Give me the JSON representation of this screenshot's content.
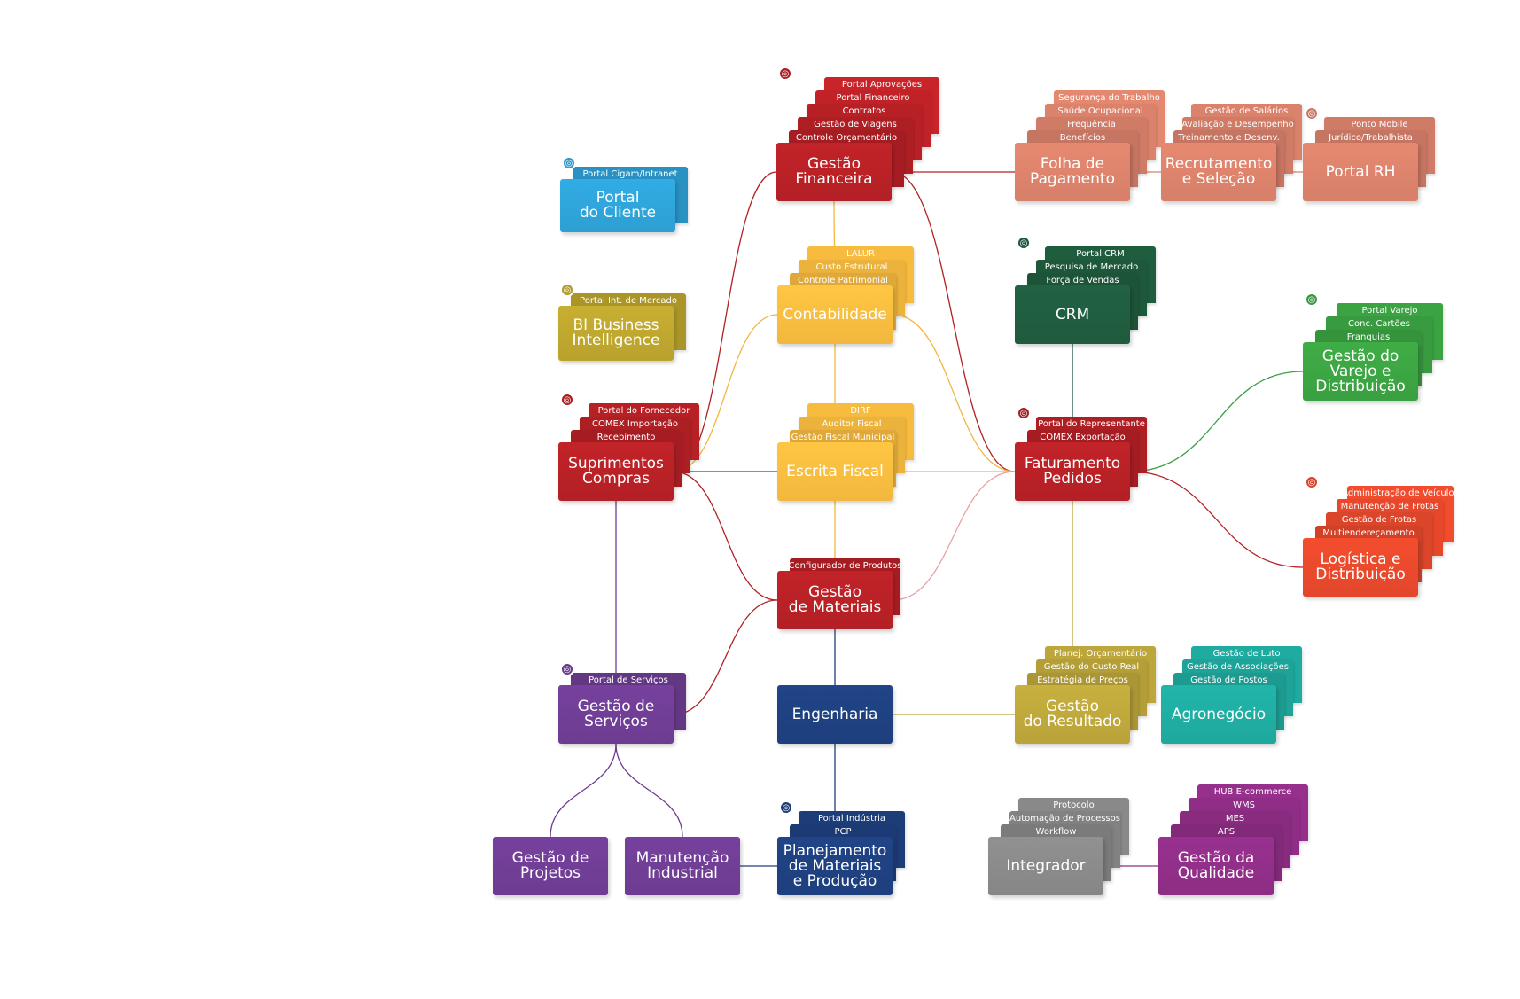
{
  "colors": {
    "darkred": "#9b1b1c",
    "red": "#b32025",
    "salmon": "#d67f69",
    "amber": "#f2b73e",
    "green_dark": "#1f5b3d",
    "green": "#3aa041",
    "orange": "#e2472b",
    "blue_light": "#2d9fd3",
    "olive": "#b9a22d",
    "olive2": "#b9a33a",
    "purple": "#6d3c91",
    "navy": "#1e3f7d",
    "teal": "#1fa89d",
    "gray": "#868686",
    "magenta": "#8d2d84"
  },
  "modules": [
    {
      "id": "portal-cliente",
      "label": "Portal\ndo Cliente",
      "color": "blue_light",
      "globe": true,
      "subs": [
        "Portal Cigam/Intranet"
      ]
    },
    {
      "id": "bi",
      "label": "BI Business\nIntelligence",
      "color": "olive",
      "globe": true,
      "subs": [
        "Portal Int. de Mercado"
      ]
    },
    {
      "id": "gestao-financeira",
      "label": "Gestão\nFinanceira",
      "color": "red",
      "globe": true,
      "subs": [
        "Controle Orçamentário",
        "Gestão de Viagens",
        "Contratos",
        "Portal Financeiro",
        "Portal Aprovações"
      ]
    },
    {
      "id": "contabilidade",
      "label": "Contabilidade",
      "color": "amber",
      "globe": false,
      "subs": [
        "Controle Patrimonial",
        "Custo Estrutural",
        "LALUR"
      ]
    },
    {
      "id": "escrita-fiscal",
      "label": "Escrita Fiscal",
      "color": "amber",
      "globe": false,
      "subs": [
        "Gestão Fiscal Municipal",
        "Auditor Fiscal",
        "DIRF"
      ]
    },
    {
      "id": "suprimentos",
      "label": "Suprimentos\nCompras",
      "color": "red",
      "globe": true,
      "subs": [
        "Recebimento",
        "COMEX Importação",
        "Portal do Fornecedor"
      ]
    },
    {
      "id": "gestao-materiais",
      "label": "Gestão\nde Materiais",
      "color": "red",
      "globe": false,
      "subs": [
        "Configurador de Produtos"
      ]
    },
    {
      "id": "gestao-servicos",
      "label": "Gestão de\nServiços",
      "color": "purple",
      "globe": true,
      "subs": [
        "Portal de Serviços"
      ]
    },
    {
      "id": "engenharia",
      "label": "Engenharia",
      "color": "navy",
      "globe": false,
      "subs": []
    },
    {
      "id": "gestao-projetos",
      "label": "Gestão de\nProjetos",
      "color": "purple",
      "globe": false,
      "subs": []
    },
    {
      "id": "manutencao",
      "label": "Manutenção\nIndustrial",
      "color": "purple",
      "globe": false,
      "subs": []
    },
    {
      "id": "planejamento",
      "label": "Planejamento\nde Materiais\ne Produção",
      "color": "navy",
      "globe": true,
      "subs": [
        "PCP",
        "Portal Indústria"
      ]
    },
    {
      "id": "folha",
      "label": "Folha de\nPagamento",
      "color": "salmon",
      "globe": false,
      "subs": [
        "Benefícios",
        "Frequência",
        "Saúde Ocupacional",
        "Segurança do Trabalho"
      ]
    },
    {
      "id": "recrutamento",
      "label": "Recrutamento\ne Seleção",
      "color": "salmon",
      "globe": false,
      "subs": [
        "Treinamento e Desenv.",
        "Avaliação e Desempenho",
        "Gestão de Salários"
      ]
    },
    {
      "id": "portal-rh",
      "label": "Portal RH",
      "color": "salmon",
      "globe": true,
      "subs": [
        "Jurídico/Trabalhista",
        "Ponto Mobile"
      ]
    },
    {
      "id": "crm",
      "label": "CRM",
      "color": "green_dark",
      "globe": true,
      "subs": [
        "Força de Vendas",
        "Pesquisa de Mercado",
        "Portal CRM"
      ]
    },
    {
      "id": "varejo",
      "label": "Gestão do\nVarejo e\nDistribuição",
      "color": "green",
      "globe": true,
      "subs": [
        "Franquias",
        "Conc. Cartões",
        "Portal Varejo"
      ]
    },
    {
      "id": "faturamento",
      "label": "Faturamento\nPedidos",
      "color": "red",
      "globe": true,
      "subs": [
        "COMEX Exportação",
        "Portal do Representante"
      ]
    },
    {
      "id": "logistica",
      "label": "Logística e\nDistribuição",
      "color": "orange",
      "globe": true,
      "subs": [
        "Multiendereçamento",
        "Gestão de Frotas",
        "Manutenção de Frotas",
        "Administração de Veículos"
      ]
    },
    {
      "id": "resultado",
      "label": "Gestão\ndo Resultado",
      "color": "olive2",
      "globe": false,
      "subs": [
        "Estratégia de Preços",
        "Gestão do Custo Real",
        "Planej. Orçamentário"
      ]
    },
    {
      "id": "agronegocio",
      "label": "Agronegócio",
      "color": "teal",
      "globe": false,
      "subs": [
        "Gestão de Postos",
        "Gestão de Associações",
        "Gestão de Luto"
      ]
    },
    {
      "id": "integrador",
      "label": "Integrador",
      "color": "gray",
      "globe": false,
      "subs": [
        "Workflow",
        "Automação de Processos",
        "Protocolo"
      ]
    },
    {
      "id": "qualidade",
      "label": "Gestão da\nQualidade",
      "color": "magenta",
      "globe": false,
      "subs": [
        "APS",
        "MES",
        "WMS",
        "HUB E-commerce"
      ]
    }
  ]
}
